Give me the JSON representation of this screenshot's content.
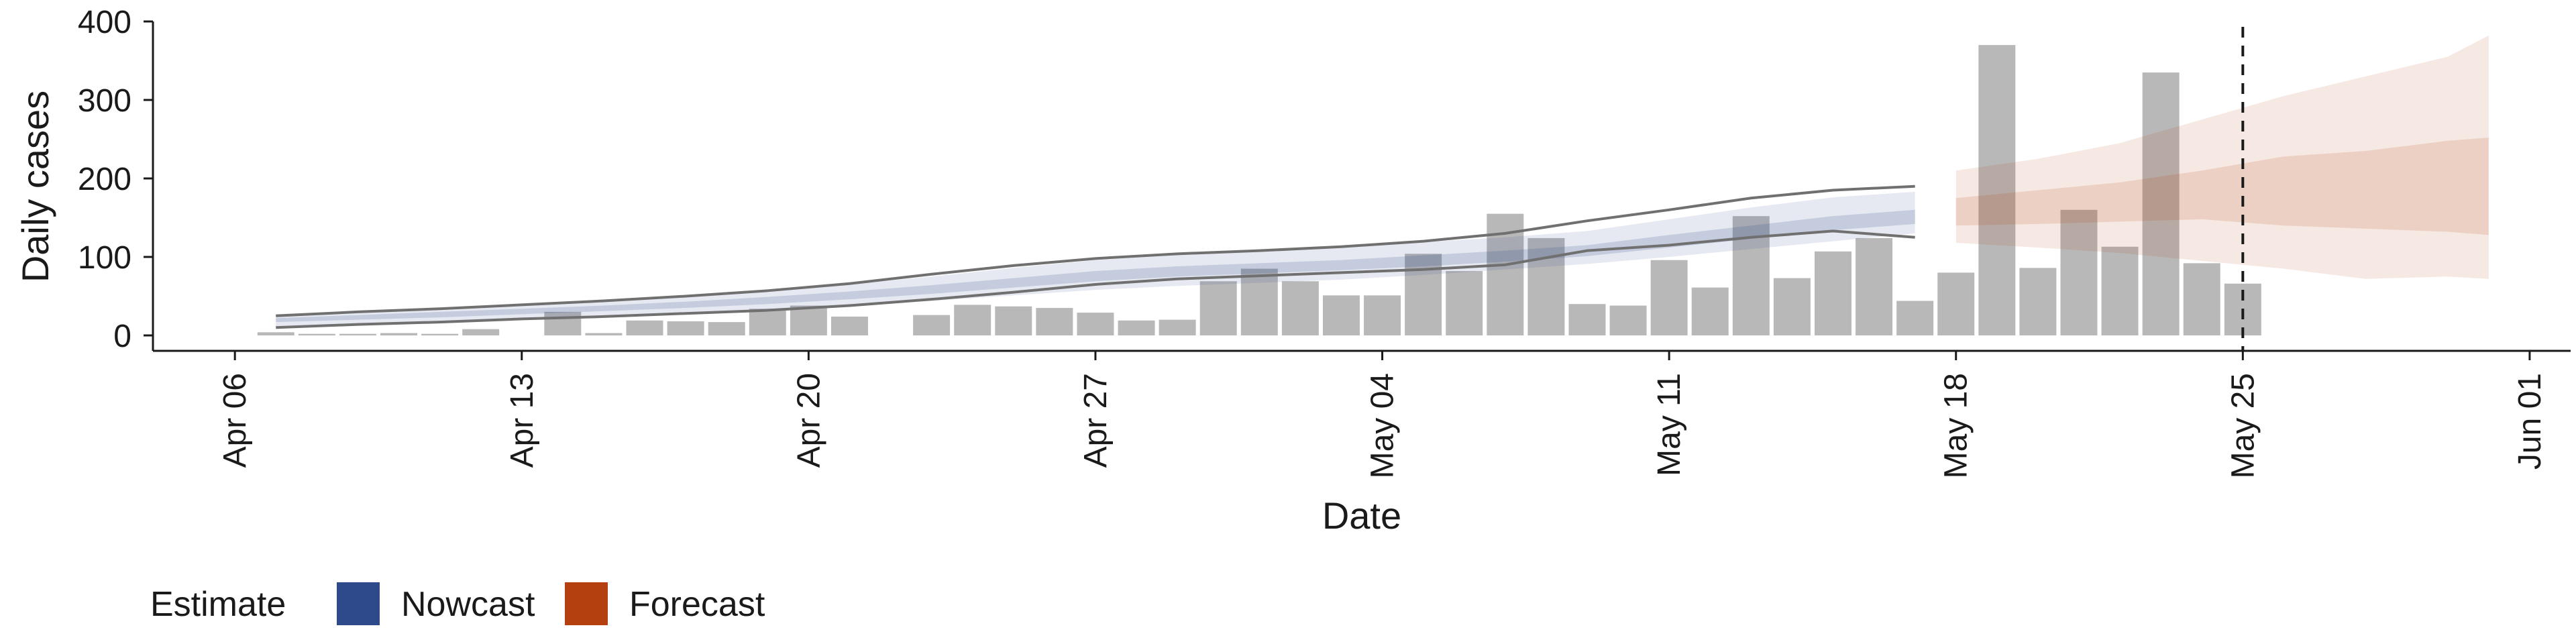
{
  "chart_data": {
    "type": "bar",
    "xlabel": "Date",
    "ylabel": "Daily cases",
    "ylim": [
      0,
      400
    ],
    "yticks": [
      0,
      100,
      200,
      300,
      400
    ],
    "xlim": [
      "2020-04-04",
      "2020-06-02"
    ],
    "xticks": [
      {
        "date": "2020-04-06",
        "label": "Apr 06"
      },
      {
        "date": "2020-04-13",
        "label": "Apr 13"
      },
      {
        "date": "2020-04-20",
        "label": "Apr 20"
      },
      {
        "date": "2020-04-27",
        "label": "Apr 27"
      },
      {
        "date": "2020-05-04",
        "label": "May 04"
      },
      {
        "date": "2020-05-11",
        "label": "May 11"
      },
      {
        "date": "2020-05-18",
        "label": "May 18"
      },
      {
        "date": "2020-05-25",
        "label": "May 25"
      },
      {
        "date": "2020-06-01",
        "label": "Jun 01"
      }
    ],
    "vline": {
      "date": "2020-05-25",
      "style": "dashed"
    },
    "grid": false,
    "bars": {
      "color": "#b8b8b8",
      "dates": [
        "2020-04-07",
        "2020-04-08",
        "2020-04-09",
        "2020-04-10",
        "2020-04-11",
        "2020-04-12",
        "2020-04-13",
        "2020-04-14",
        "2020-04-15",
        "2020-04-16",
        "2020-04-17",
        "2020-04-18",
        "2020-04-19",
        "2020-04-20",
        "2020-04-21",
        "2020-04-22",
        "2020-04-23",
        "2020-04-24",
        "2020-04-25",
        "2020-04-26",
        "2020-04-27",
        "2020-04-28",
        "2020-04-29",
        "2020-04-30",
        "2020-05-01",
        "2020-05-02",
        "2020-05-03",
        "2020-05-04",
        "2020-05-05",
        "2020-05-06",
        "2020-05-07",
        "2020-05-08",
        "2020-05-09",
        "2020-05-10",
        "2020-05-11",
        "2020-05-12",
        "2020-05-13",
        "2020-05-14",
        "2020-05-15",
        "2020-05-16",
        "2020-05-17",
        "2020-05-18",
        "2020-05-19",
        "2020-05-20",
        "2020-05-21",
        "2020-05-22",
        "2020-05-23",
        "2020-05-24",
        "2020-05-25"
      ],
      "values": [
        4,
        2,
        2,
        3,
        2,
        8,
        0,
        30,
        3,
        19,
        18,
        17,
        34,
        38,
        24,
        0,
        26,
        39,
        37,
        35,
        29,
        19,
        20,
        69,
        85,
        69,
        51,
        51,
        104,
        82,
        155,
        124,
        40,
        38,
        96,
        61,
        152,
        73,
        107,
        124,
        44,
        80,
        370,
        86,
        160,
        113,
        335,
        92,
        66
      ]
    },
    "nowcast": {
      "name": "Nowcast",
      "color": "#2f4a8a",
      "dates": [
        "2020-04-07",
        "2020-04-09",
        "2020-04-11",
        "2020-04-13",
        "2020-04-15",
        "2020-04-17",
        "2020-04-19",
        "2020-04-21",
        "2020-04-23",
        "2020-04-25",
        "2020-04-27",
        "2020-04-29",
        "2020-05-01",
        "2020-05-03",
        "2020-05-05",
        "2020-05-07",
        "2020-05-09",
        "2020-05-11",
        "2020-05-13",
        "2020-05-15",
        "2020-05-17"
      ],
      "upper90": [
        27,
        31,
        35,
        40,
        45,
        51,
        58,
        65,
        75,
        86,
        96,
        103,
        108,
        112,
        119,
        125,
        133,
        148,
        163,
        176,
        183
      ],
      "upper50": [
        22,
        26,
        30,
        34,
        38,
        43,
        49,
        56,
        64,
        73,
        82,
        88,
        92,
        96,
        102,
        108,
        115,
        128,
        140,
        152,
        160
      ],
      "lower50": [
        17,
        20,
        23,
        27,
        31,
        35,
        40,
        46,
        53,
        61,
        69,
        75,
        79,
        83,
        88,
        94,
        101,
        112,
        123,
        134,
        142
      ],
      "lower90": [
        11,
        14,
        17,
        21,
        25,
        29,
        33,
        38,
        44,
        51,
        58,
        63,
        67,
        71,
        77,
        84,
        91,
        100,
        110,
        120,
        130
      ],
      "outer_lines": {
        "upper": [
          25,
          30,
          34,
          39,
          44,
          50,
          57,
          66,
          78,
          89,
          98,
          104,
          108,
          113,
          120,
          130,
          146,
          160,
          175,
          185,
          190
        ],
        "lower": [
          10,
          14,
          17,
          21,
          24,
          28,
          32,
          38,
          46,
          55,
          65,
          72,
          76,
          80,
          84,
          90,
          108,
          115,
          125,
          133,
          125
        ]
      }
    },
    "forecast": {
      "name": "Forecast",
      "color": "#b5400f",
      "dates": [
        "2020-05-18",
        "2020-05-20",
        "2020-05-22",
        "2020-05-24",
        "2020-05-26",
        "2020-05-28",
        "2020-05-30",
        "2020-05-31"
      ],
      "upper90": [
        210,
        225,
        245,
        275,
        305,
        330,
        355,
        382
      ],
      "upper50": [
        175,
        185,
        195,
        210,
        228,
        235,
        248,
        252
      ],
      "lower50": [
        140,
        142,
        145,
        148,
        140,
        136,
        132,
        128
      ],
      "lower90": [
        118,
        112,
        105,
        95,
        85,
        72,
        75,
        72
      ]
    },
    "legend": {
      "title": "Estimate",
      "position": "bottom-left",
      "items": [
        {
          "label": "Nowcast",
          "color": "#2f4a8a"
        },
        {
          "label": "Forecast",
          "color": "#b5400f"
        }
      ]
    }
  }
}
